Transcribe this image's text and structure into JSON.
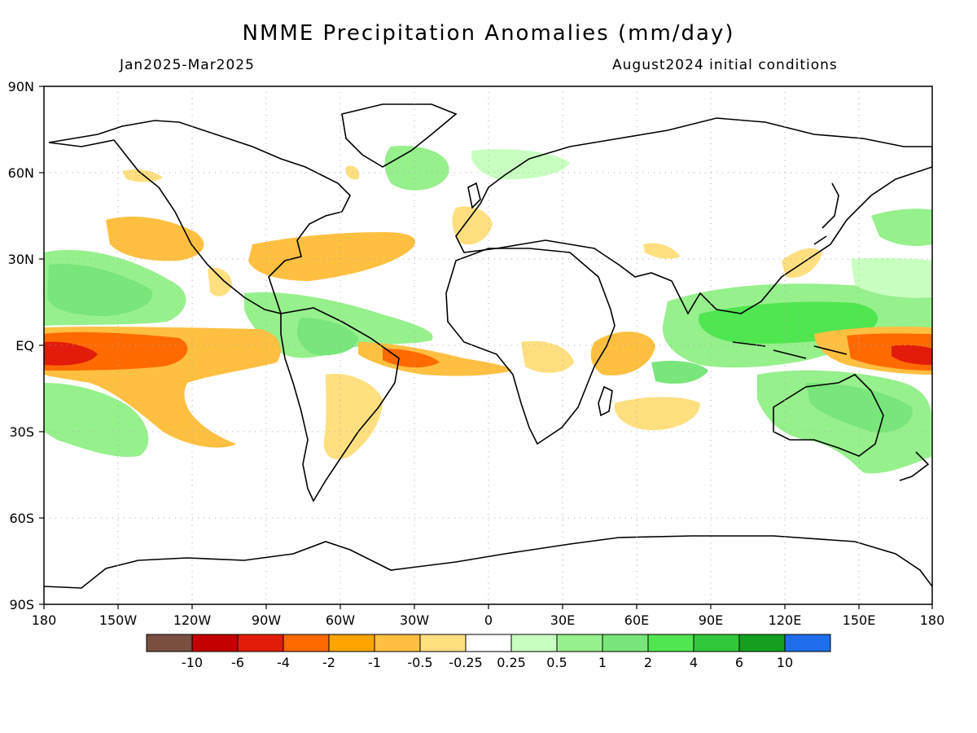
{
  "header": {
    "title": "NMME Precipitation Anomalies (mm/day)",
    "period": "Jan2025-Mar2025",
    "initial_conditions": "August2024 initial conditions"
  },
  "axes": {
    "lat_labels": [
      "90N",
      "60N",
      "30N",
      "EQ",
      "30S",
      "60S",
      "90S"
    ],
    "lon_labels": [
      "180",
      "150W",
      "120W",
      "90W",
      "60W",
      "30W",
      "0",
      "30E",
      "60E",
      "90E",
      "120E",
      "150E",
      "180"
    ]
  },
  "colorbar": {
    "colors": [
      "#7a4f40",
      "#c40000",
      "#e21b0a",
      "#ff6a00",
      "#ffa500",
      "#ffbf40",
      "#ffdf80",
      "#ffffff",
      "#c8ffc0",
      "#96f08c",
      "#78e67a",
      "#50e650",
      "#32c83c",
      "#14a01e",
      "#1e6eeb"
    ],
    "labels": [
      "-10",
      "-6",
      "-4",
      "-2",
      "-1",
      "-0.5",
      "-0.25",
      "0.25",
      "0.5",
      "1",
      "2",
      "4",
      "6",
      "10"
    ]
  },
  "colors": {
    "dry_strong": "#ff6a00",
    "dry_moderate": "#ffbf40",
    "dry_weak": "#ffdf80",
    "wet_weak": "#c8ffc0",
    "wet_moderate": "#78e67a",
    "wet_strong": "#50e650"
  }
}
